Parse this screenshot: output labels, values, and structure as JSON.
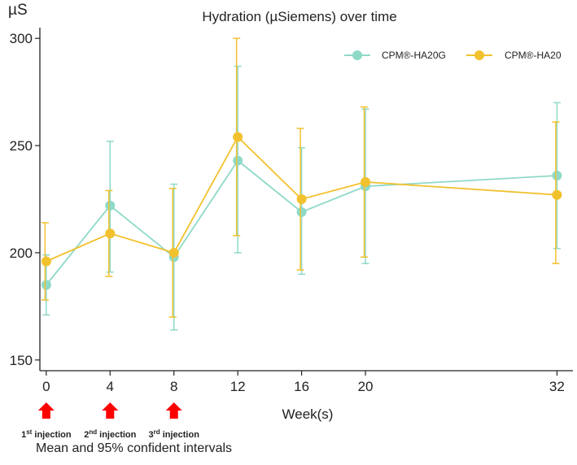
{
  "chart_data": {
    "type": "line",
    "title": "Hydration (µSiemens) over time",
    "ylabel": "µS",
    "xlabel": "Week(s)",
    "x": [
      0,
      4,
      8,
      12,
      16,
      20,
      32
    ],
    "x_ticks": [
      0,
      4,
      8,
      12,
      16,
      20,
      32
    ],
    "xlim": [
      -0.4,
      33
    ],
    "ylim": [
      145,
      305
    ],
    "y_ticks": [
      150,
      200,
      250,
      300
    ],
    "grid": false,
    "legend_position": "top-right",
    "series": [
      {
        "name": "CPM®-HA20G",
        "color": "#8fd9c8",
        "values": [
          185,
          222,
          198,
          243,
          219,
          231,
          236
        ],
        "ci_low": [
          171,
          191,
          164,
          200,
          190,
          195,
          202
        ],
        "ci_high": [
          199,
          252,
          232,
          287,
          249,
          267,
          270
        ]
      },
      {
        "name": "CPM®-HA20",
        "color": "#f2c12e",
        "values": [
          196,
          209,
          200,
          254,
          225,
          233,
          227
        ],
        "ci_low": [
          178,
          189,
          170,
          208,
          192,
          198,
          195
        ],
        "ci_high": [
          214,
          229,
          230,
          300,
          258,
          268,
          261
        ]
      }
    ],
    "injections": [
      {
        "week": 0,
        "number": "1",
        "suffix": "st",
        "text": " injection"
      },
      {
        "week": 4,
        "number": "2",
        "suffix": "nd",
        "text": " injection"
      },
      {
        "week": 8,
        "number": "3",
        "suffix": "rd",
        "text": " injection"
      }
    ],
    "arrow_color": "#ff0000",
    "footnote": "Mean and 95% confident intervals"
  }
}
